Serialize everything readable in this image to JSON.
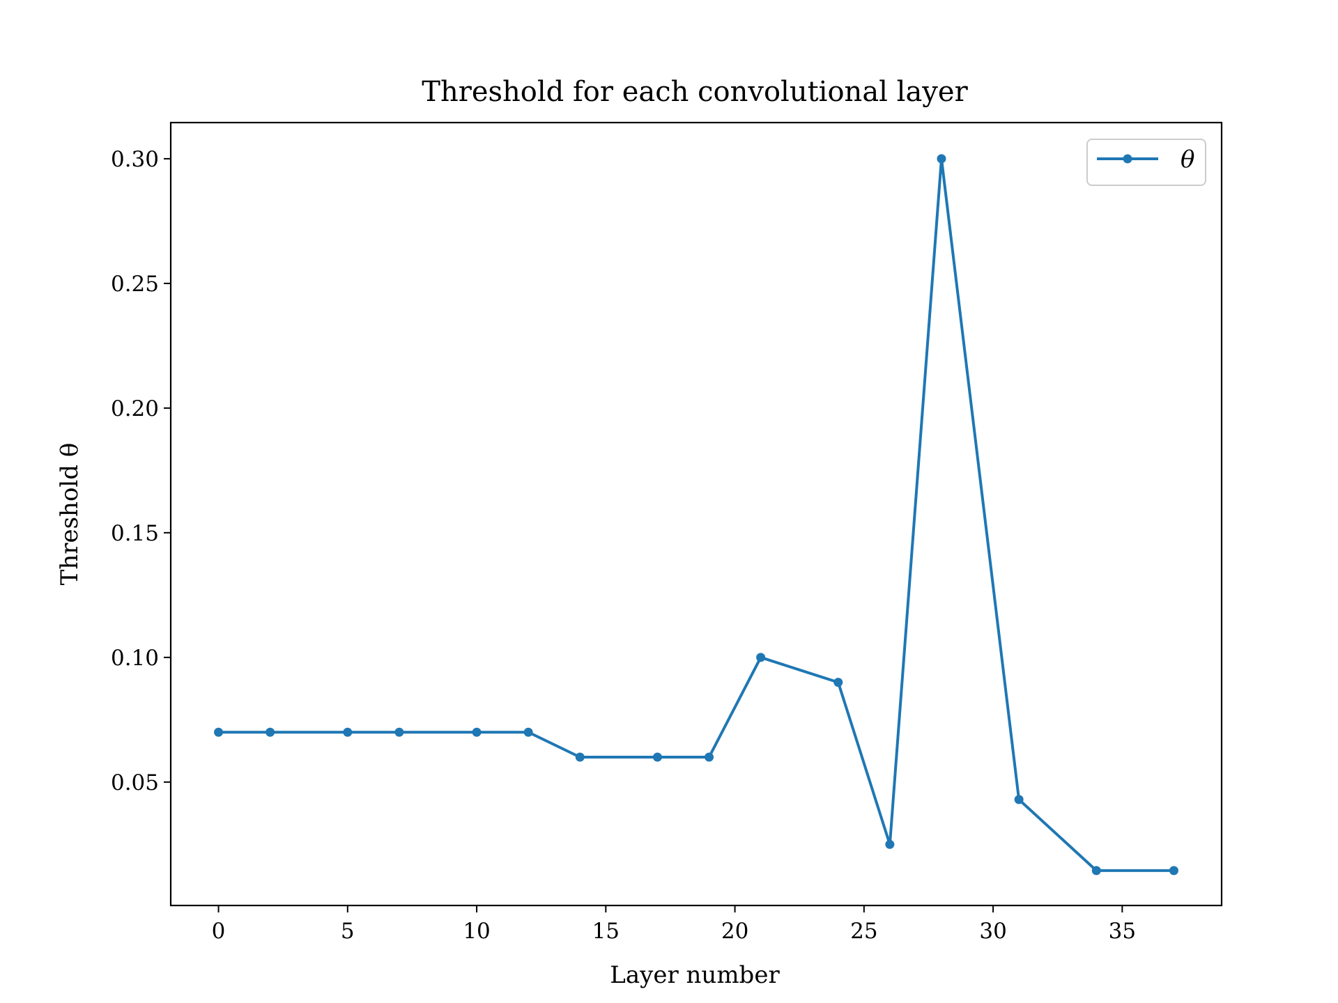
{
  "chart_data": {
    "type": "line",
    "title": "Threshold for each convolutional layer",
    "xlabel": "Layer number",
    "ylabel": "Threshold θ",
    "xlim": [
      -1.85,
      38.85
    ],
    "ylim": [
      0.0005,
      0.3145
    ],
    "xticks": [
      0,
      5,
      10,
      15,
      20,
      25,
      30,
      35
    ],
    "xtick_labels": [
      "0",
      "5",
      "10",
      "15",
      "20",
      "25",
      "30",
      "35"
    ],
    "yticks": [
      0.05,
      0.1,
      0.15,
      0.2,
      0.25,
      0.3
    ],
    "ytick_labels": [
      "0.05",
      "0.10",
      "0.15",
      "0.20",
      "0.25",
      "0.30"
    ],
    "grid": false,
    "legend_position": "top-right",
    "series": [
      {
        "name": "θ",
        "color": "#1f77b4",
        "marker": "circle",
        "x": [
          0,
          2,
          5,
          7,
          10,
          12,
          14,
          17,
          19,
          21,
          24,
          26,
          28,
          31,
          34,
          37
        ],
        "y": [
          0.07,
          0.07,
          0.07,
          0.07,
          0.07,
          0.07,
          0.06,
          0.06,
          0.06,
          0.1,
          0.09,
          0.025,
          0.3,
          0.043,
          0.0145,
          0.0145
        ]
      }
    ]
  }
}
